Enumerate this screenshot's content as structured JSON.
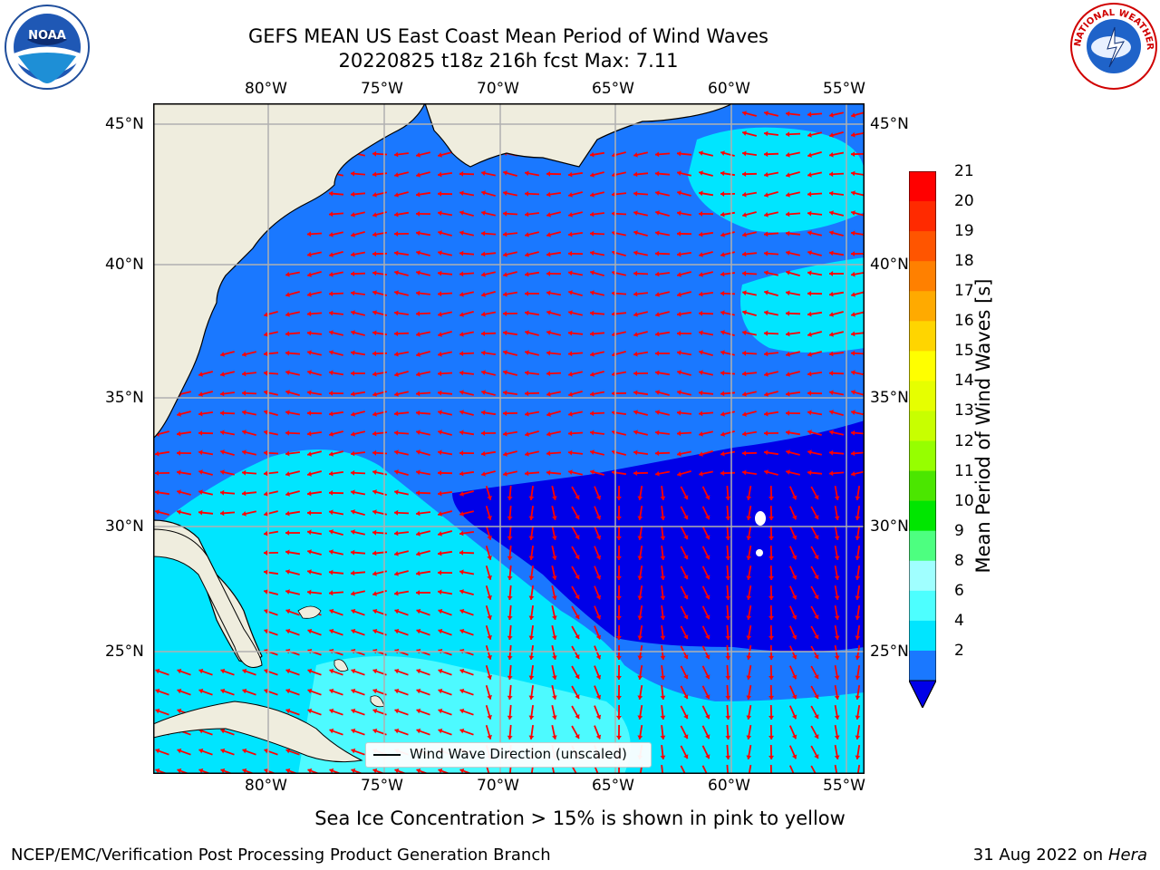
{
  "header": {
    "title_line1": "GEFS MEAN US East Coast Mean Period of Wind Waves",
    "title_line2": "20220825 t18z 216h fcst   Max: 7.11"
  },
  "logos": {
    "left": {
      "name": "NOAA",
      "text": "NOAA"
    },
    "right": {
      "name": "National Weather Service",
      "text": "NATIONAL WEATHER SERVICE"
    }
  },
  "map": {
    "lon_labels": [
      "80°W",
      "75°W",
      "70°W",
      "65°W",
      "60°W",
      "55°W"
    ],
    "lat_labels": [
      "45°N",
      "40°N",
      "35°N",
      "30°N",
      "25°N"
    ],
    "legend_label": "Wind Wave Direction (unscaled)",
    "colors": {
      "land": "#efedde",
      "field_low": "#0000e8",
      "field_2_4": "#1a78ff",
      "field_4_6": "#00e5ff",
      "field_6_8": "#4dfaff",
      "arrow": "#ff0000",
      "grid": "#b0b0b0"
    }
  },
  "colorbar": {
    "label": "Mean Period of Wind Waves [s]",
    "ticks": [
      "21",
      "20",
      "19",
      "18",
      "17",
      "16",
      "15",
      "14",
      "13",
      "12",
      "11",
      "10",
      "9",
      "8",
      "6",
      "4",
      "2"
    ],
    "colors": [
      "#ff0000",
      "#ff2a00",
      "#ff5500",
      "#ff8000",
      "#ffaa00",
      "#ffd500",
      "#ffff00",
      "#e6ff00",
      "#c8ff00",
      "#96ff00",
      "#4be600",
      "#00e600",
      "#4dff80",
      "#a0ffff",
      "#4dffff",
      "#00e5ff",
      "#1a78ff"
    ],
    "extend_color": "#0000e8"
  },
  "footer": {
    "ice_note": "Sea Ice Concentration > 15% is shown in pink to yellow",
    "branch": "NCEP/EMC/Verification Post Processing Product Generation Branch",
    "date": "31 Aug 2022 on",
    "machine": "Hera"
  }
}
